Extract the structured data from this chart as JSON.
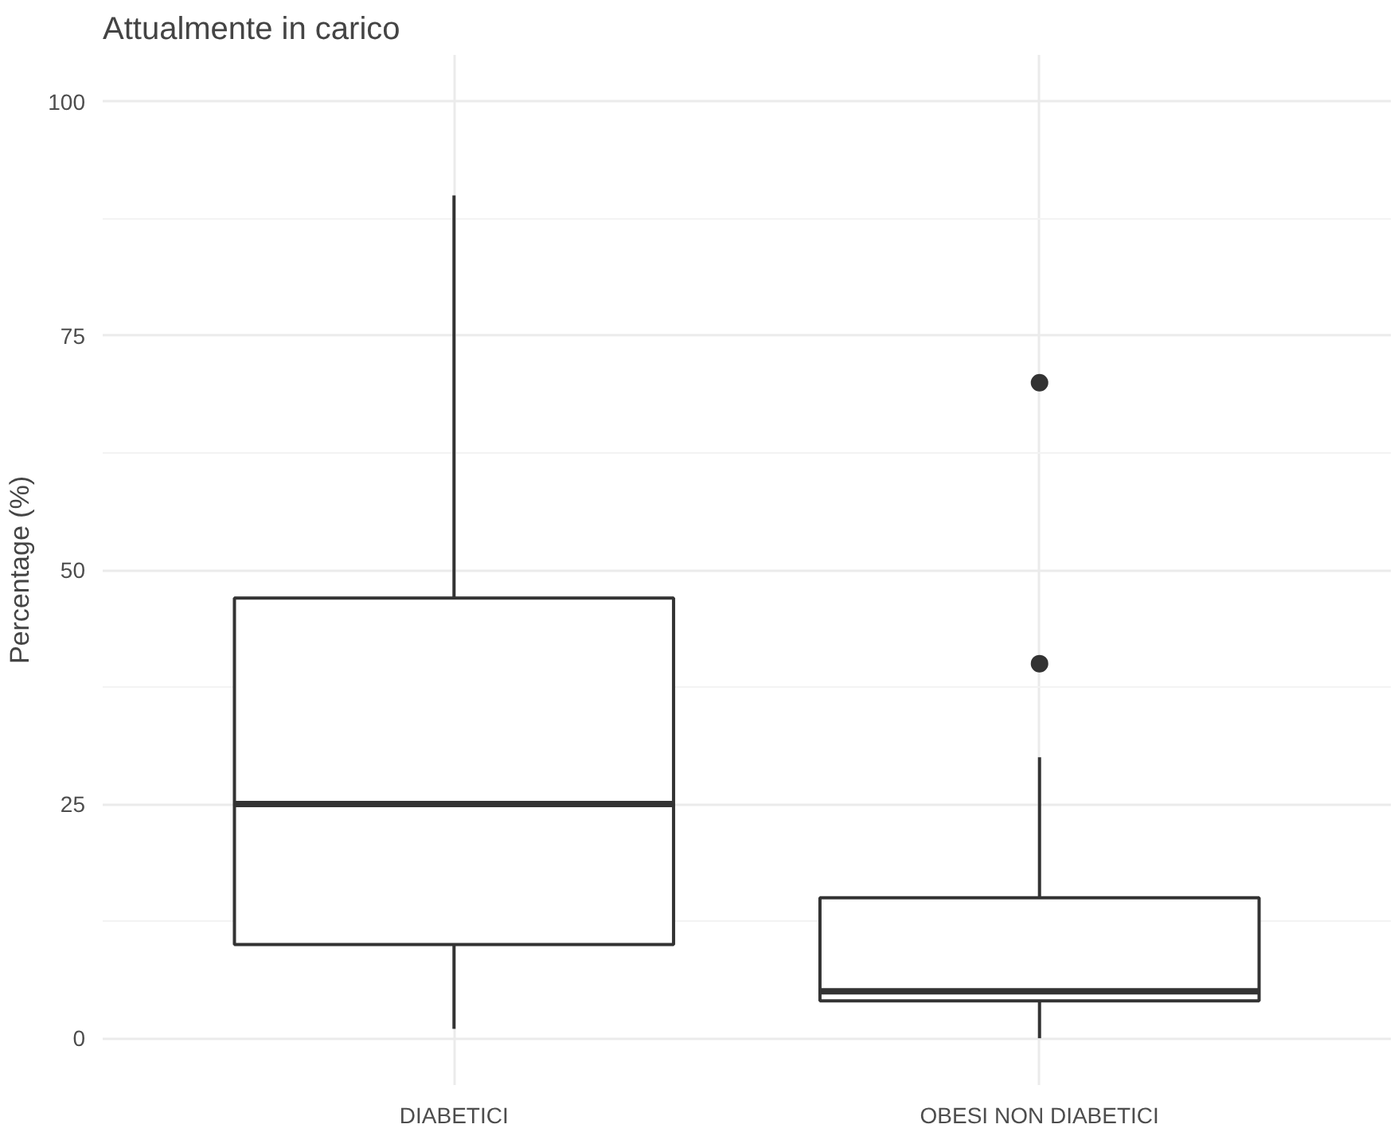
{
  "chart_data": {
    "type": "box",
    "title": "Attualmente in carico",
    "ylabel": "Percentage (%)",
    "categories": [
      "DIABETICI",
      "OBESI NON DIABETICI"
    ],
    "boxes": [
      {
        "low": 1,
        "q1": 10,
        "median": 25,
        "q3": 47,
        "high": 90
      },
      {
        "low": 0,
        "q1": 4,
        "median": 5,
        "q3": 15,
        "high": 30,
        "outliers": [
          40,
          70
        ]
      }
    ],
    "ylim": [
      -5,
      105
    ],
    "yticks": [
      0,
      25,
      50,
      75,
      100
    ],
    "grid": true
  }
}
